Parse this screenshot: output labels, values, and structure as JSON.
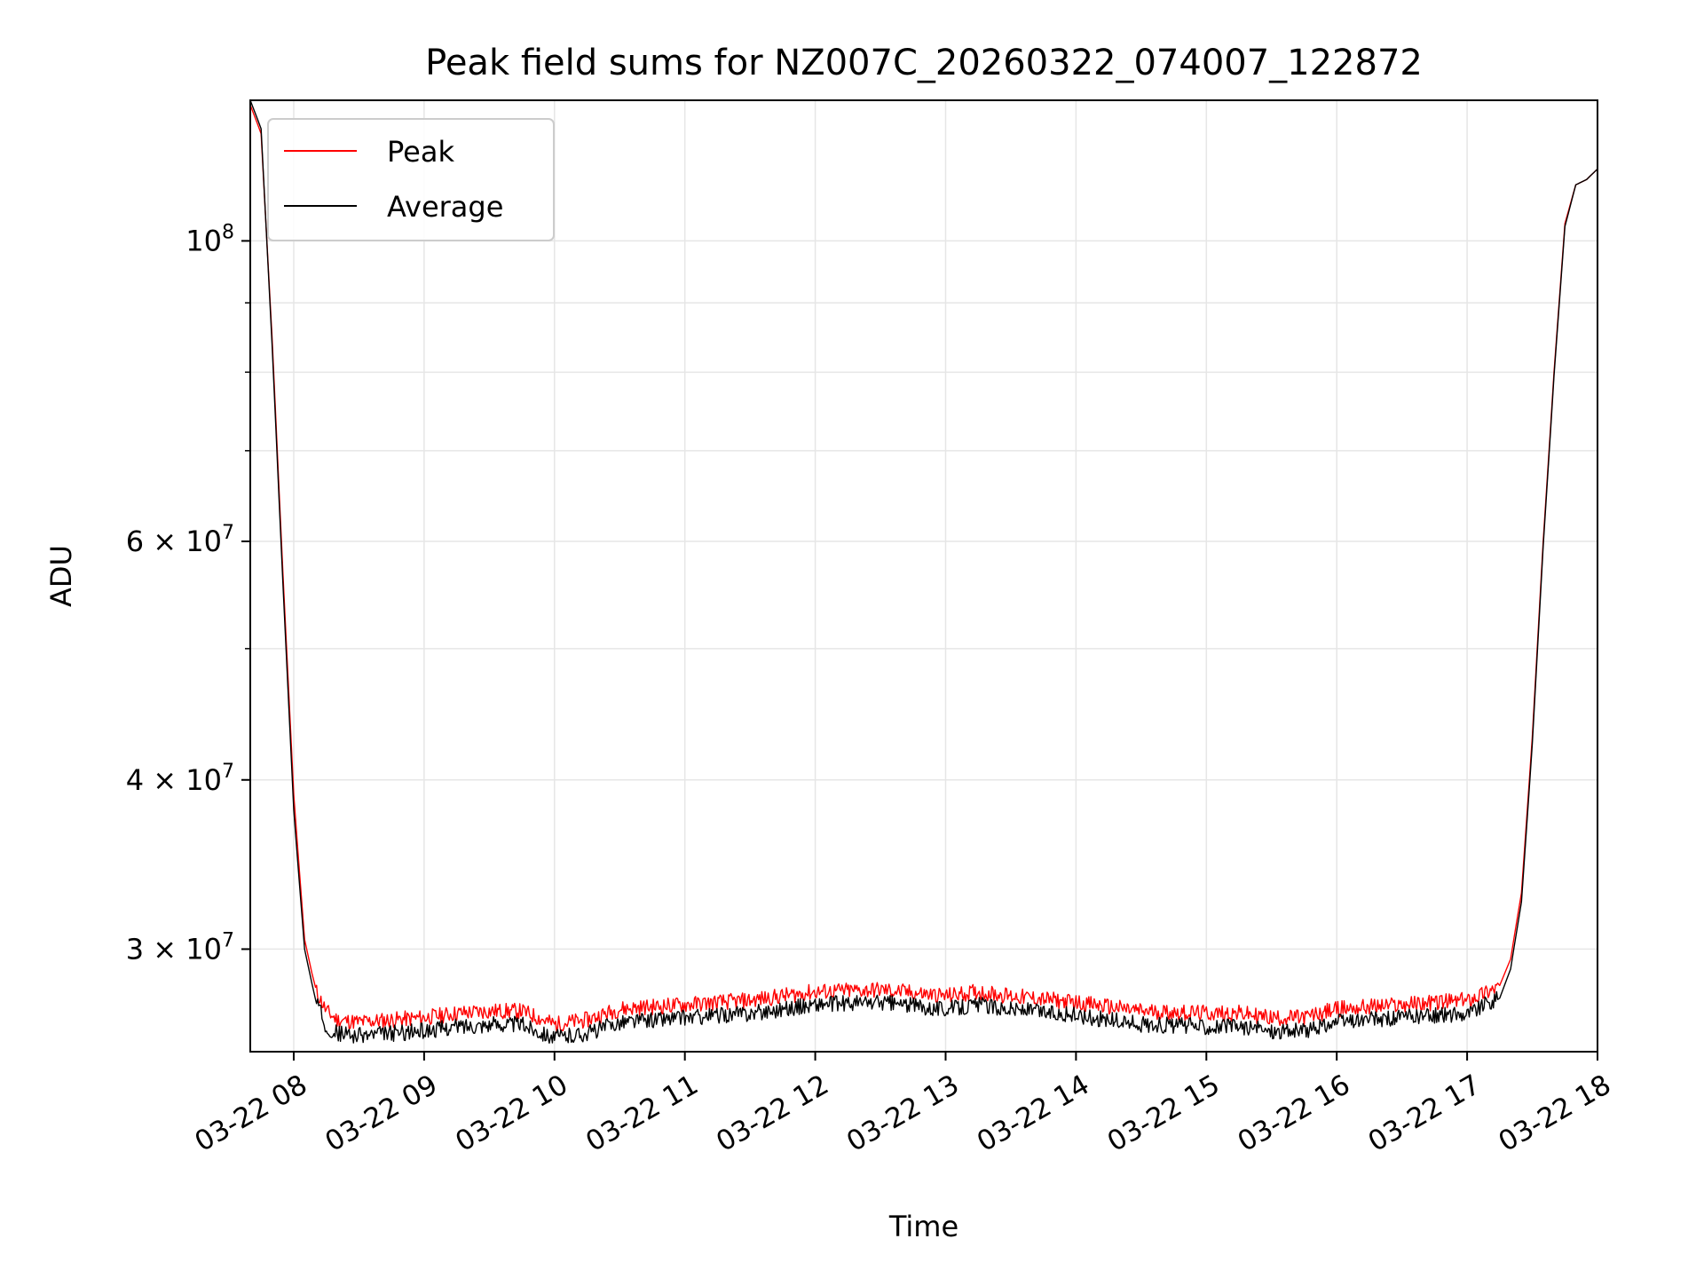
{
  "chart_data": {
    "type": "line",
    "title": "Peak field sums for NZ007C_20260322_074007_122872",
    "xlabel": "Time",
    "ylabel": "ADU",
    "yscale": "log",
    "grid": true,
    "legend_position": "upper-left",
    "xlim": [
      "2026-03-22T07:40",
      "2026-03-22T18:00"
    ],
    "ylim": [
      25200000,
      127000000
    ],
    "x_ticks": [
      "03-22 08",
      "03-22 09",
      "03-22 10",
      "03-22 11",
      "03-22 12",
      "03-22 13",
      "03-22 14",
      "03-22 15",
      "03-22 16",
      "03-22 17",
      "03-22 18"
    ],
    "y_ticks": [
      {
        "value": 30000000,
        "label": "3 × 10",
        "exp": "7"
      },
      {
        "value": 40000000,
        "label": "4 × 10",
        "exp": "7"
      },
      {
        "value": 60000000,
        "label": "6 × 10",
        "exp": "7"
      },
      {
        "value": 100000000,
        "label": "10",
        "exp": "8"
      }
    ],
    "y_minor_ticks": [
      50000000,
      70000000,
      80000000,
      90000000
    ],
    "series": [
      {
        "name": "Peak",
        "color": "#ff0000",
        "x": [
          "2026-03-22T07:40",
          "2026-03-22T07:45",
          "2026-03-22T07:50",
          "2026-03-22T07:55",
          "2026-03-22T08:00",
          "2026-03-22T08:05",
          "2026-03-22T08:10",
          "2026-03-22T08:15",
          "2026-03-22T08:20",
          "2026-03-22T08:30",
          "2026-03-22T08:45",
          "2026-03-22T09:00",
          "2026-03-22T09:15",
          "2026-03-22T09:30",
          "2026-03-22T09:45",
          "2026-03-22T10:00",
          "2026-03-22T10:15",
          "2026-03-22T10:30",
          "2026-03-22T10:45",
          "2026-03-22T11:00",
          "2026-03-22T11:30",
          "2026-03-22T12:00",
          "2026-03-22T12:30",
          "2026-03-22T13:00",
          "2026-03-22T13:15",
          "2026-03-22T13:30",
          "2026-03-22T14:00",
          "2026-03-22T14:30",
          "2026-03-22T15:00",
          "2026-03-22T15:15",
          "2026-03-22T15:30",
          "2026-03-22T15:45",
          "2026-03-22T16:00",
          "2026-03-22T16:15",
          "2026-03-22T16:30",
          "2026-03-22T16:45",
          "2026-03-22T17:00",
          "2026-03-22T17:15",
          "2026-03-22T17:20",
          "2026-03-22T17:25",
          "2026-03-22T17:30",
          "2026-03-22T17:35",
          "2026-03-22T17:40",
          "2026-03-22T17:45",
          "2026-03-22T17:50",
          "2026-03-22T17:55",
          "2026-03-22T18:00"
        ],
        "values": [
          126000000,
          120000000,
          85000000,
          57000000,
          39000000,
          30500000,
          28000000,
          27000000,
          26600000,
          26500000,
          26600000,
          26700000,
          26900000,
          27000000,
          27000000,
          26400000,
          26600000,
          27100000,
          27200000,
          27300000,
          27500000,
          27900000,
          28000000,
          27700000,
          27900000,
          27700000,
          27400000,
          27000000,
          26900000,
          26900000,
          26700000,
          26700000,
          27100000,
          27200000,
          27300000,
          27400000,
          27500000,
          28200000,
          29500000,
          33000000,
          43000000,
          60000000,
          80000000,
          103000000,
          110000000,
          111000000,
          113000000
        ]
      },
      {
        "name": "Average",
        "color": "#000000",
        "x": [
          "2026-03-22T07:40",
          "2026-03-22T07:45",
          "2026-03-22T07:50",
          "2026-03-22T07:55",
          "2026-03-22T08:00",
          "2026-03-22T08:05",
          "2026-03-22T08:10",
          "2026-03-22T08:15",
          "2026-03-22T08:20",
          "2026-03-22T08:30",
          "2026-03-22T08:45",
          "2026-03-22T09:00",
          "2026-03-22T09:15",
          "2026-03-22T09:30",
          "2026-03-22T09:45",
          "2026-03-22T10:00",
          "2026-03-22T10:15",
          "2026-03-22T10:30",
          "2026-03-22T10:45",
          "2026-03-22T11:00",
          "2026-03-22T11:30",
          "2026-03-22T12:00",
          "2026-03-22T12:30",
          "2026-03-22T13:00",
          "2026-03-22T13:15",
          "2026-03-22T13:30",
          "2026-03-22T14:00",
          "2026-03-22T14:30",
          "2026-03-22T15:00",
          "2026-03-22T15:15",
          "2026-03-22T15:30",
          "2026-03-22T15:45",
          "2026-03-22T16:00",
          "2026-03-22T16:15",
          "2026-03-22T16:30",
          "2026-03-22T16:45",
          "2026-03-22T17:00",
          "2026-03-22T17:15",
          "2026-03-22T17:20",
          "2026-03-22T17:25",
          "2026-03-22T17:30",
          "2026-03-22T17:35",
          "2026-03-22T17:40",
          "2026-03-22T17:45",
          "2026-03-22T17:50",
          "2026-03-22T17:55",
          "2026-03-22T18:00"
        ],
        "values": [
          127000000,
          121000000,
          84000000,
          56000000,
          38000000,
          30000000,
          27500000,
          26300000,
          26000000,
          25900000,
          26000000,
          26100000,
          26300000,
          26400000,
          26400000,
          25800000,
          26000000,
          26500000,
          26600000,
          26700000,
          26900000,
          27300000,
          27400000,
          27100000,
          27300000,
          27100000,
          26800000,
          26400000,
          26300000,
          26300000,
          26100000,
          26100000,
          26500000,
          26600000,
          26700000,
          26800000,
          26900000,
          27600000,
          29000000,
          32500000,
          42500000,
          59500000,
          79500000,
          102500000,
          110000000,
          111000000,
          113000000
        ]
      }
    ]
  }
}
